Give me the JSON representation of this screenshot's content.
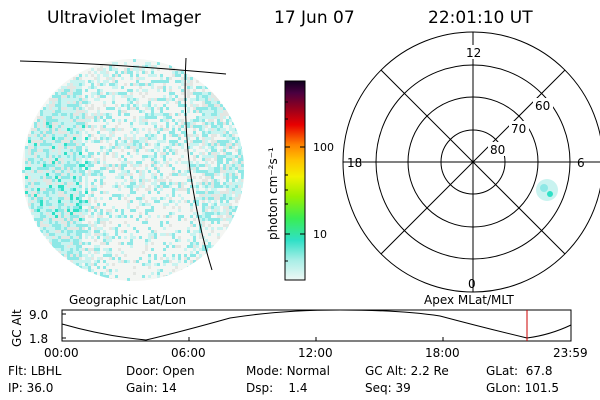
{
  "header": {
    "title": "Ultraviolet Imager",
    "date": "17 Jun 07",
    "time": "22:01:10 UT"
  },
  "colorbar": {
    "unit_label": "photon cm⁻²s⁻¹",
    "ticks": [
      "100",
      "10"
    ]
  },
  "polar": {
    "mlt_labels": [
      "12",
      "18",
      "6",
      "0"
    ],
    "lat_labels": [
      "60",
      "70",
      "80"
    ]
  },
  "projection_labels": {
    "left": "Geographic Lat/Lon",
    "right": "Apex MLat/MLT"
  },
  "altitude_plot": {
    "axis_label": "GC Alt",
    "y_ticks": [
      "9.0",
      "1.8"
    ],
    "x_ticks": [
      "00:00",
      "06:00",
      "12:00",
      "18:00",
      "23:59"
    ],
    "current_marker_color": "#cc0000"
  },
  "footer": {
    "row1": [
      {
        "label": "Flt:",
        "value": "LBHL"
      },
      {
        "label": "Door:",
        "value": "Open"
      },
      {
        "label": "Mode:",
        "value": "Normal"
      },
      {
        "label": "GC Alt:",
        "value": "2.2 Re"
      },
      {
        "label": "GLat:",
        "value": "67.8"
      }
    ],
    "row2": [
      {
        "label": "IP:",
        "value": "36.0"
      },
      {
        "label": "Gain:",
        "value": "14"
      },
      {
        "label": "Dsp:",
        "value": "1.4"
      },
      {
        "label": "Seq:",
        "value": "39"
      },
      {
        "label": "GLon:",
        "value": "101.5"
      }
    ]
  },
  "colors": {
    "speckle_light": "#c9f3f0",
    "speckle_mid": "#8ee8e6",
    "speckle_strong": "#2fe0c6",
    "grey_haze": "#e3e6e2",
    "curve": "#000000"
  }
}
